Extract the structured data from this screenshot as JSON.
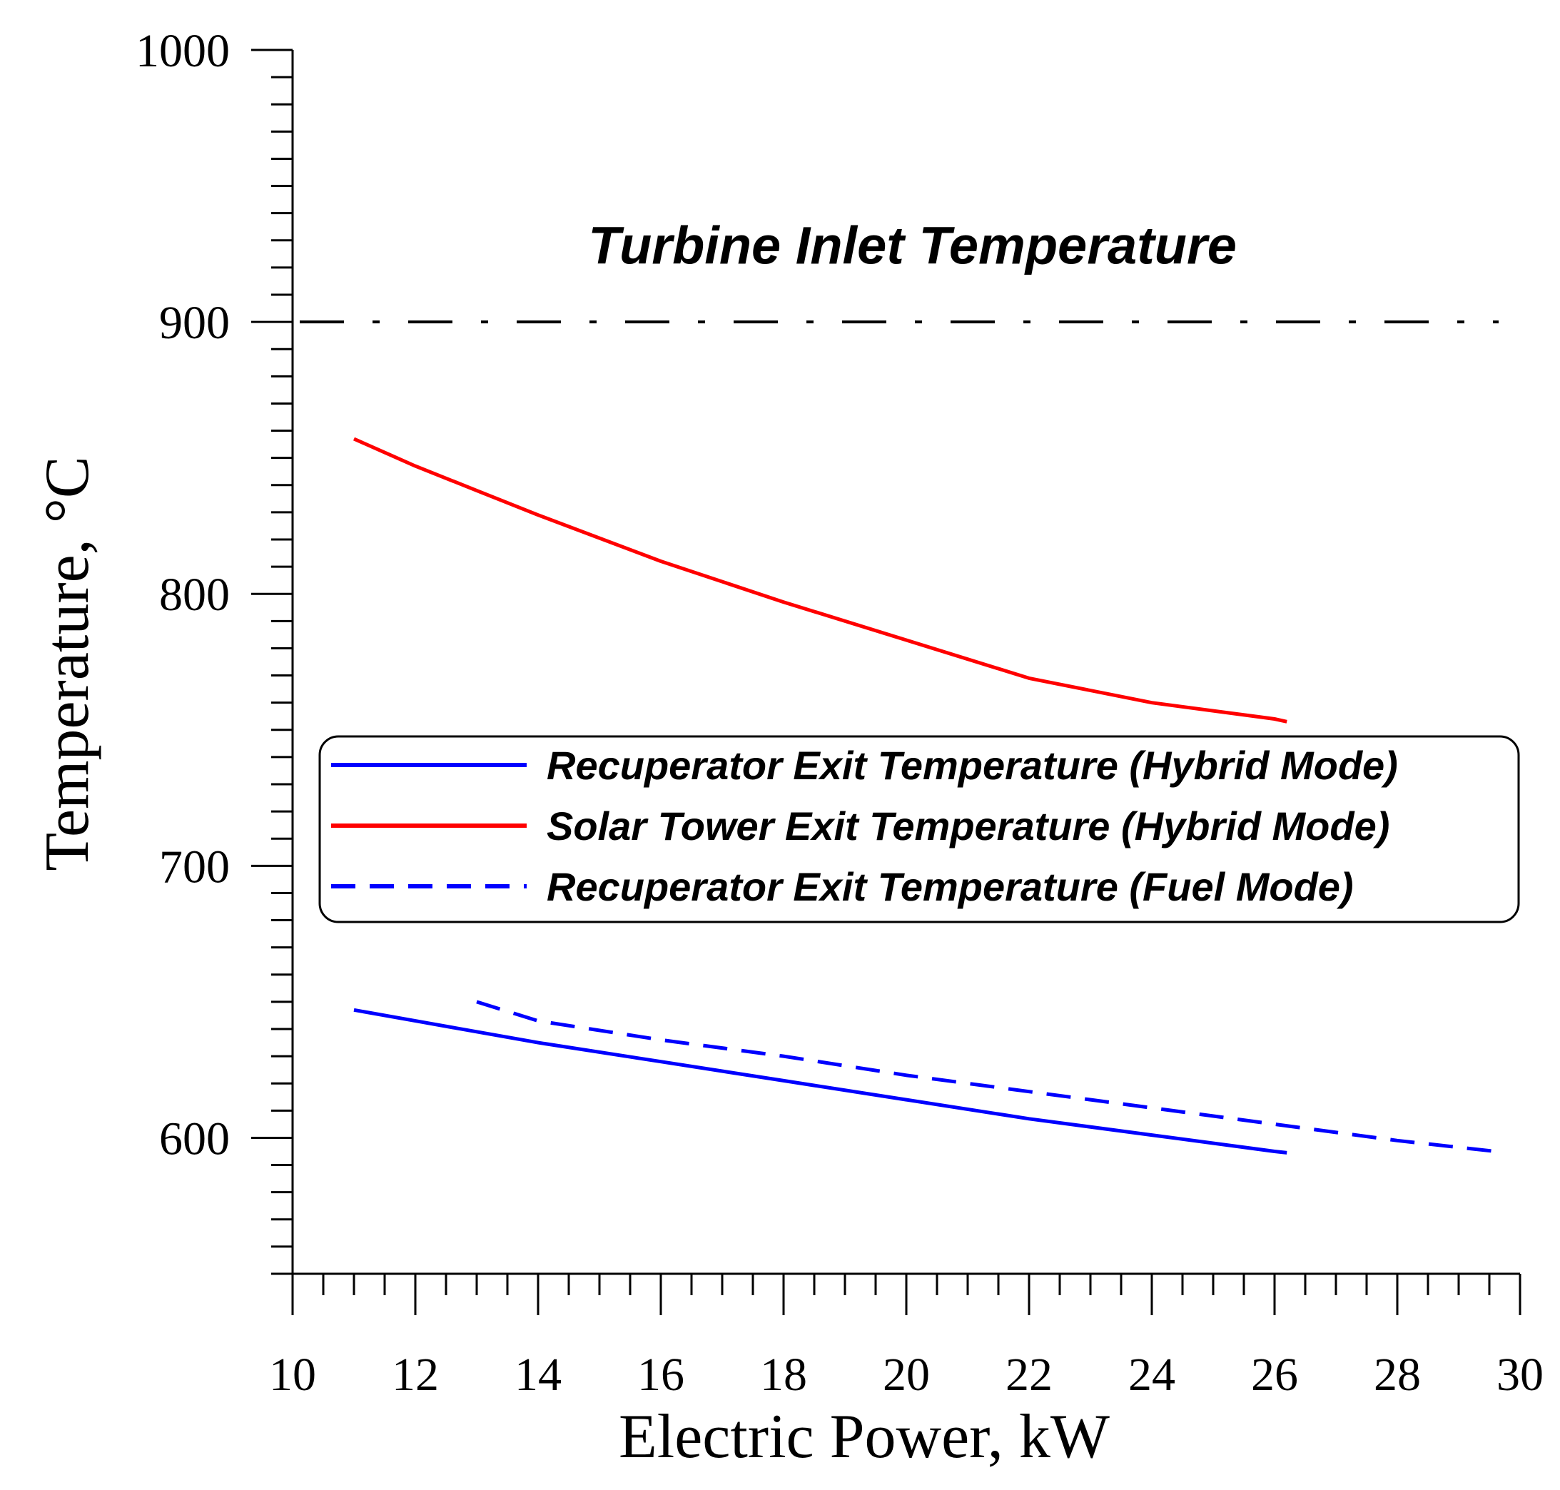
{
  "chart_data": {
    "type": "line",
    "title": "",
    "xlabel": "Electric Power, kW",
    "ylabel": "Temperature, °C",
    "xlim": [
      10,
      30
    ],
    "ylim": [
      550,
      1000
    ],
    "x_ticks": [
      10,
      12,
      14,
      16,
      18,
      20,
      22,
      24,
      26,
      28,
      30
    ],
    "y_ticks": [
      600,
      700,
      800,
      900,
      1000
    ],
    "x_minor_step": 0.5,
    "y_minor_step": 10,
    "grid": false,
    "legend_position": "center-right",
    "reference_lines": [
      {
        "name": "Turbine Inlet Temperature",
        "y": 900,
        "style": "dash-dot",
        "color": "#000000"
      }
    ],
    "annotations": [
      {
        "text": "Turbine Inlet Temperature",
        "x": 20.1,
        "y": 928
      }
    ],
    "series": [
      {
        "name": "Recuperator Exit Temperature (Hybrid Mode)",
        "color": "#0000ff",
        "style": "solid",
        "x": [
          11,
          12,
          14,
          16,
          18,
          20,
          22,
          24,
          26,
          26.2
        ],
        "values": [
          647,
          643,
          635,
          628,
          621,
          614,
          607,
          601,
          595,
          594.5
        ]
      },
      {
        "name": "Solar Tower Exit Temperature (Hybrid Mode)",
        "color": "#ff0000",
        "style": "solid",
        "x": [
          11,
          12,
          13,
          14,
          16,
          18,
          20,
          22,
          24,
          26,
          26.2
        ],
        "values": [
          857,
          847,
          838,
          829,
          812,
          797,
          783,
          769,
          760,
          754,
          753
        ]
      },
      {
        "name": "Recuperator Exit Temperature (Fuel Mode)",
        "color": "#0000ff",
        "style": "dashed",
        "x": [
          13,
          14,
          16,
          18,
          20,
          22,
          24,
          26,
          28,
          29.6
        ],
        "values": [
          650,
          643,
          636,
          630,
          623,
          617,
          611,
          605,
          599,
          595
        ]
      }
    ]
  }
}
